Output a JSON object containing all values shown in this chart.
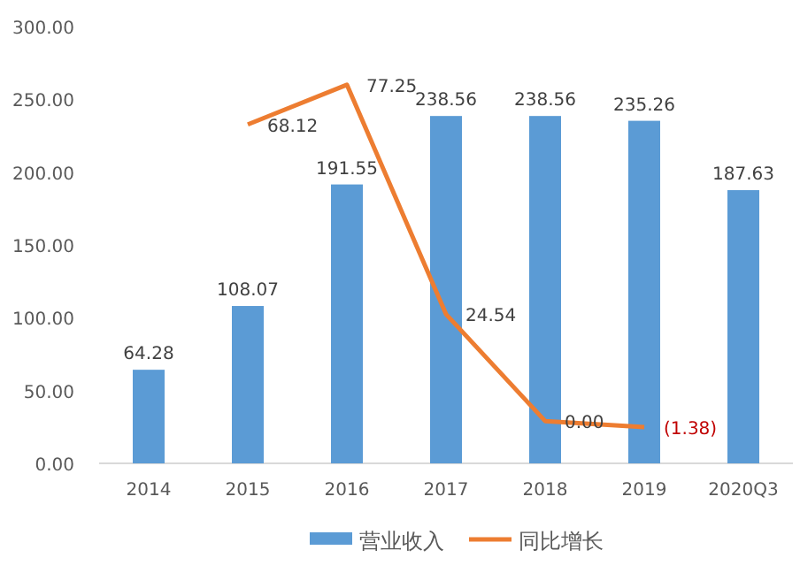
{
  "chart_data": {
    "type": "bar",
    "categories": [
      "2014",
      "2015",
      "2016",
      "2017",
      "2018",
      "2019",
      "2020Q3"
    ],
    "series": [
      {
        "name": "营业收入",
        "color": "#5b9bd5",
        "values": [
          64.28,
          108.07,
          191.55,
          238.56,
          238.56,
          235.26,
          187.63
        ],
        "value_labels": [
          "64.28",
          "108.07",
          "191.55",
          "238.56",
          "238.56",
          "235.26",
          "187.63"
        ]
      },
      {
        "name": "同比增长",
        "type": "line",
        "axis": "y2",
        "color": "#ed7d31",
        "values": [
          null,
          68.12,
          77.25,
          24.54,
          0.0,
          -1.38,
          null
        ],
        "value_labels": [
          null,
          "68.12",
          "77.25",
          "24.54",
          "0.00",
          "(1.38)",
          null
        ]
      }
    ],
    "ylim": [
      0,
      300
    ],
    "yticks": [
      {
        "value": 0,
        "label": "0.00"
      },
      {
        "value": 50,
        "label": "50.00"
      },
      {
        "value": 100,
        "label": "100.00"
      },
      {
        "value": 150,
        "label": "150.00"
      },
      {
        "value": 200,
        "label": "200.00"
      },
      {
        "value": 250,
        "label": "250.00"
      },
      {
        "value": 300,
        "label": "300.00"
      }
    ],
    "legend": "bottom",
    "marker": "none",
    "line_style": "solid"
  }
}
